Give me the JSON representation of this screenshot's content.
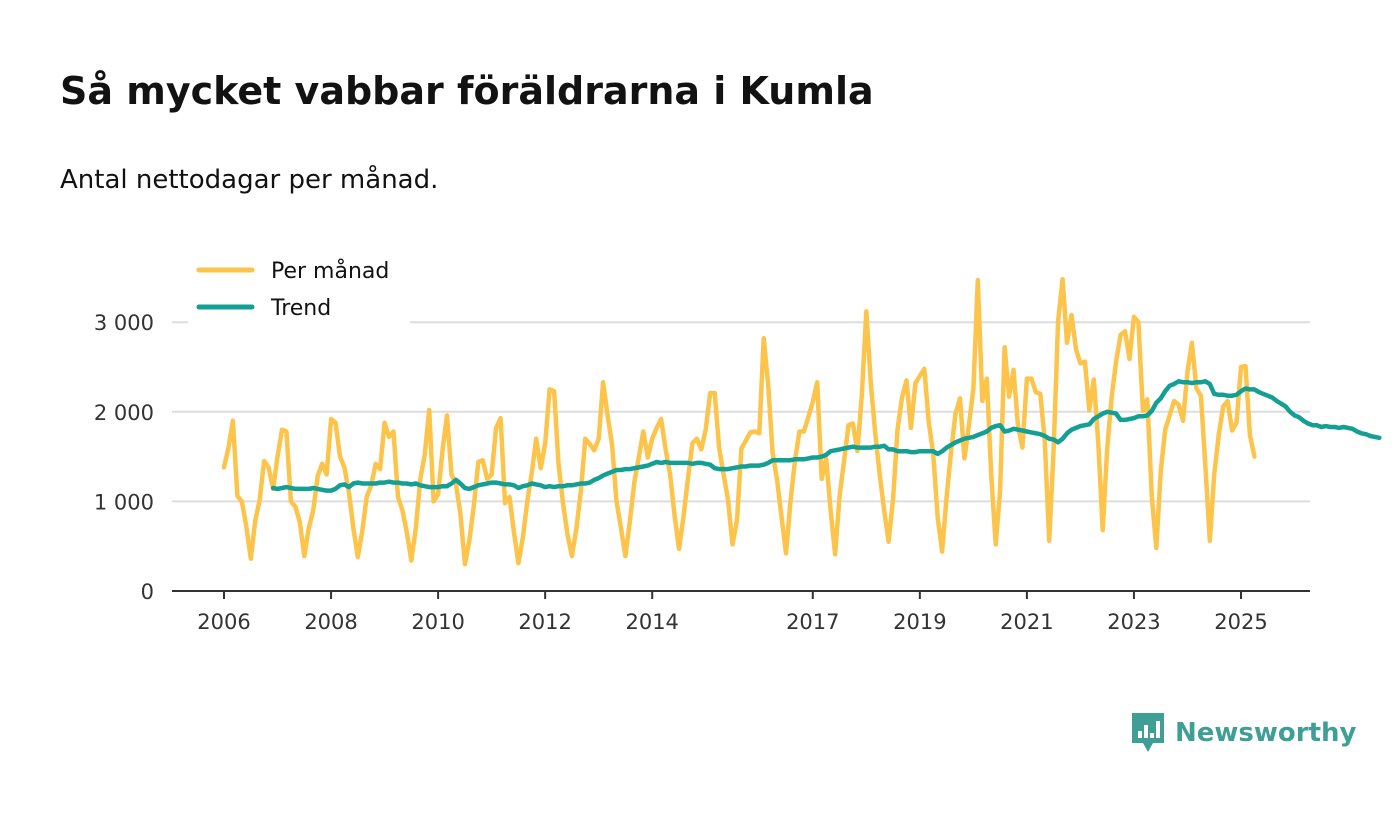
{
  "chart_data": {
    "type": "line",
    "title": "Så mycket vabbar föräldrarna i Kumla",
    "subtitle": "Antal nettodagar per månad.",
    "xlabel": "",
    "ylabel": "",
    "xlim": [
      2006,
      2025.7
    ],
    "ylim": [
      0,
      3500
    ],
    "grid": true,
    "legend_position": "top-left",
    "x_ticks": [
      2006,
      2008,
      2010,
      2012,
      2014,
      2017,
      2019,
      2021,
      2023,
      2025
    ],
    "x_tick_labels": [
      "2006",
      "2008",
      "2010",
      "2012",
      "2014",
      "2017",
      "2019",
      "2021",
      "2023",
      "2025"
    ],
    "y_ticks": [
      0,
      1000,
      2000,
      3000
    ],
    "y_tick_labels": [
      "0",
      "1 000",
      "2 000",
      "3 000"
    ],
    "colors": {
      "per_manad": "#fcc44a",
      "trend": "#139f93",
      "grid": "#dddddd",
      "axis": "#333333",
      "brand": "#3f9f96"
    },
    "series": [
      {
        "name": "Per månad",
        "color": "#fcc44a",
        "start": 2006.0,
        "step_months": 1,
        "values": [
          1380,
          1600,
          1900,
          1060,
          1000,
          720,
          360,
          780,
          1020,
          1450,
          1380,
          1140,
          1500,
          1800,
          1780,
          1000,
          940,
          770,
          390,
          700,
          900,
          1280,
          1420,
          1300,
          1920,
          1880,
          1500,
          1380,
          1100,
          700,
          380,
          670,
          1050,
          1180,
          1420,
          1360,
          1880,
          1720,
          1780,
          1050,
          900,
          650,
          340,
          700,
          1250,
          1520,
          2020,
          1000,
          1080,
          1580,
          1960,
          1300,
          1200,
          860,
          300,
          560,
          950,
          1440,
          1460,
          1250,
          1300,
          1820,
          1930,
          980,
          1050,
          660,
          310,
          600,
          1000,
          1320,
          1700,
          1370,
          1650,
          2250,
          2230,
          1420,
          980,
          630,
          390,
          700,
          1110,
          1700,
          1640,
          1570,
          1700,
          2330,
          1960,
          1630,
          1000,
          700,
          390,
          780,
          1220,
          1490,
          1780,
          1490,
          1700,
          1820,
          1920,
          1580,
          1300,
          850,
          470,
          820,
          1250,
          1650,
          1700,
          1580,
          1800,
          2210,
          2210,
          1600,
          1300,
          1020,
          520,
          790,
          1590,
          1680,
          1770,
          1780,
          1760,
          2820,
          2300,
          1540,
          1240,
          820,
          420,
          1000,
          1450,
          1780,
          1780,
          1940,
          2110,
          2330,
          1250,
          1480,
          900,
          410,
          1060,
          1450,
          1850,
          1870,
          1560,
          2200,
          3120,
          2320,
          1760,
          1300,
          900,
          550,
          1030,
          1800,
          2160,
          2350,
          1820,
          2320,
          2400,
          2480,
          1880,
          1530,
          820,
          440,
          1050,
          1560,
          1980,
          2150,
          1480,
          1850,
          2260,
          3470,
          2120,
          2370,
          1300,
          520,
          1120,
          2720,
          2170,
          2470,
          1840,
          1600,
          2370,
          2370,
          2220,
          2200,
          1690,
          560,
          1600,
          3010,
          3480,
          2770,
          3080,
          2700,
          2540,
          2560,
          2020,
          2360,
          1650,
          680,
          1590,
          2160,
          2560,
          2860,
          2900,
          2590,
          3060,
          3000,
          2010,
          2140,
          1050,
          480,
          1330,
          1800,
          1960,
          2120,
          2080,
          1900,
          2450,
          2770,
          2260,
          2180,
          1410,
          560,
          1300,
          1740,
          2060,
          2120,
          1790,
          1880,
          2500,
          2510,
          1740,
          1500
        ]
      },
      {
        "name": "Trend",
        "color": "#139f93",
        "start": 2006.917,
        "step_months": 1,
        "values": [
          1150,
          1140,
          1150,
          1160,
          1150,
          1140,
          1140,
          1140,
          1140,
          1150,
          1140,
          1130,
          1120,
          1120,
          1140,
          1180,
          1190,
          1160,
          1200,
          1210,
          1200,
          1200,
          1200,
          1200,
          1210,
          1210,
          1220,
          1210,
          1210,
          1200,
          1200,
          1190,
          1200,
          1180,
          1170,
          1160,
          1160,
          1160,
          1170,
          1170,
          1200,
          1240,
          1200,
          1150,
          1140,
          1160,
          1180,
          1190,
          1200,
          1210,
          1210,
          1200,
          1190,
          1190,
          1180,
          1150,
          1170,
          1180,
          1200,
          1190,
          1180,
          1160,
          1170,
          1160,
          1170,
          1170,
          1180,
          1180,
          1190,
          1200,
          1200,
          1210,
          1240,
          1260,
          1290,
          1310,
          1330,
          1350,
          1350,
          1360,
          1360,
          1370,
          1380,
          1390,
          1400,
          1420,
          1440,
          1430,
          1440,
          1430,
          1430,
          1430,
          1430,
          1430,
          1420,
          1430,
          1430,
          1420,
          1410,
          1370,
          1360,
          1360,
          1360,
          1370,
          1380,
          1390,
          1390,
          1400,
          1400,
          1400,
          1410,
          1430,
          1460,
          1460,
          1460,
          1460,
          1460,
          1470,
          1470,
          1470,
          1480,
          1490,
          1490,
          1500,
          1520,
          1560,
          1570,
          1580,
          1590,
          1600,
          1610,
          1600,
          1600,
          1600,
          1600,
          1610,
          1610,
          1620,
          1580,
          1580,
          1560,
          1560,
          1560,
          1550,
          1550,
          1560,
          1560,
          1560,
          1560,
          1530,
          1560,
          1600,
          1630,
          1660,
          1680,
          1700,
          1710,
          1720,
          1740,
          1760,
          1780,
          1820,
          1840,
          1850,
          1780,
          1790,
          1810,
          1800,
          1790,
          1780,
          1770,
          1760,
          1750,
          1730,
          1700,
          1690,
          1660,
          1700,
          1760,
          1800,
          1820,
          1840,
          1850,
          1860,
          1920,
          1950,
          1980,
          2000,
          1990,
          1980,
          1910,
          1910,
          1920,
          1930,
          1950,
          1950,
          1960,
          2010,
          2100,
          2150,
          2230,
          2290,
          2310,
          2340,
          2330,
          2330,
          2320,
          2330,
          2330,
          2340,
          2310,
          2200,
          2190,
          2190,
          2180,
          2180,
          2190,
          2230,
          2260,
          2250,
          2250,
          2220,
          2200,
          2180,
          2160,
          2120,
          2090,
          2060,
          2000,
          1960,
          1940,
          1900,
          1870,
          1850,
          1850,
          1830,
          1840,
          1830,
          1830,
          1820,
          1830,
          1820,
          1810,
          1780,
          1760,
          1750,
          1730,
          1720,
          1710
        ]
      }
    ]
  },
  "brand": {
    "name": "Newsworthy",
    "icon": "newsworthy-logo-icon"
  }
}
